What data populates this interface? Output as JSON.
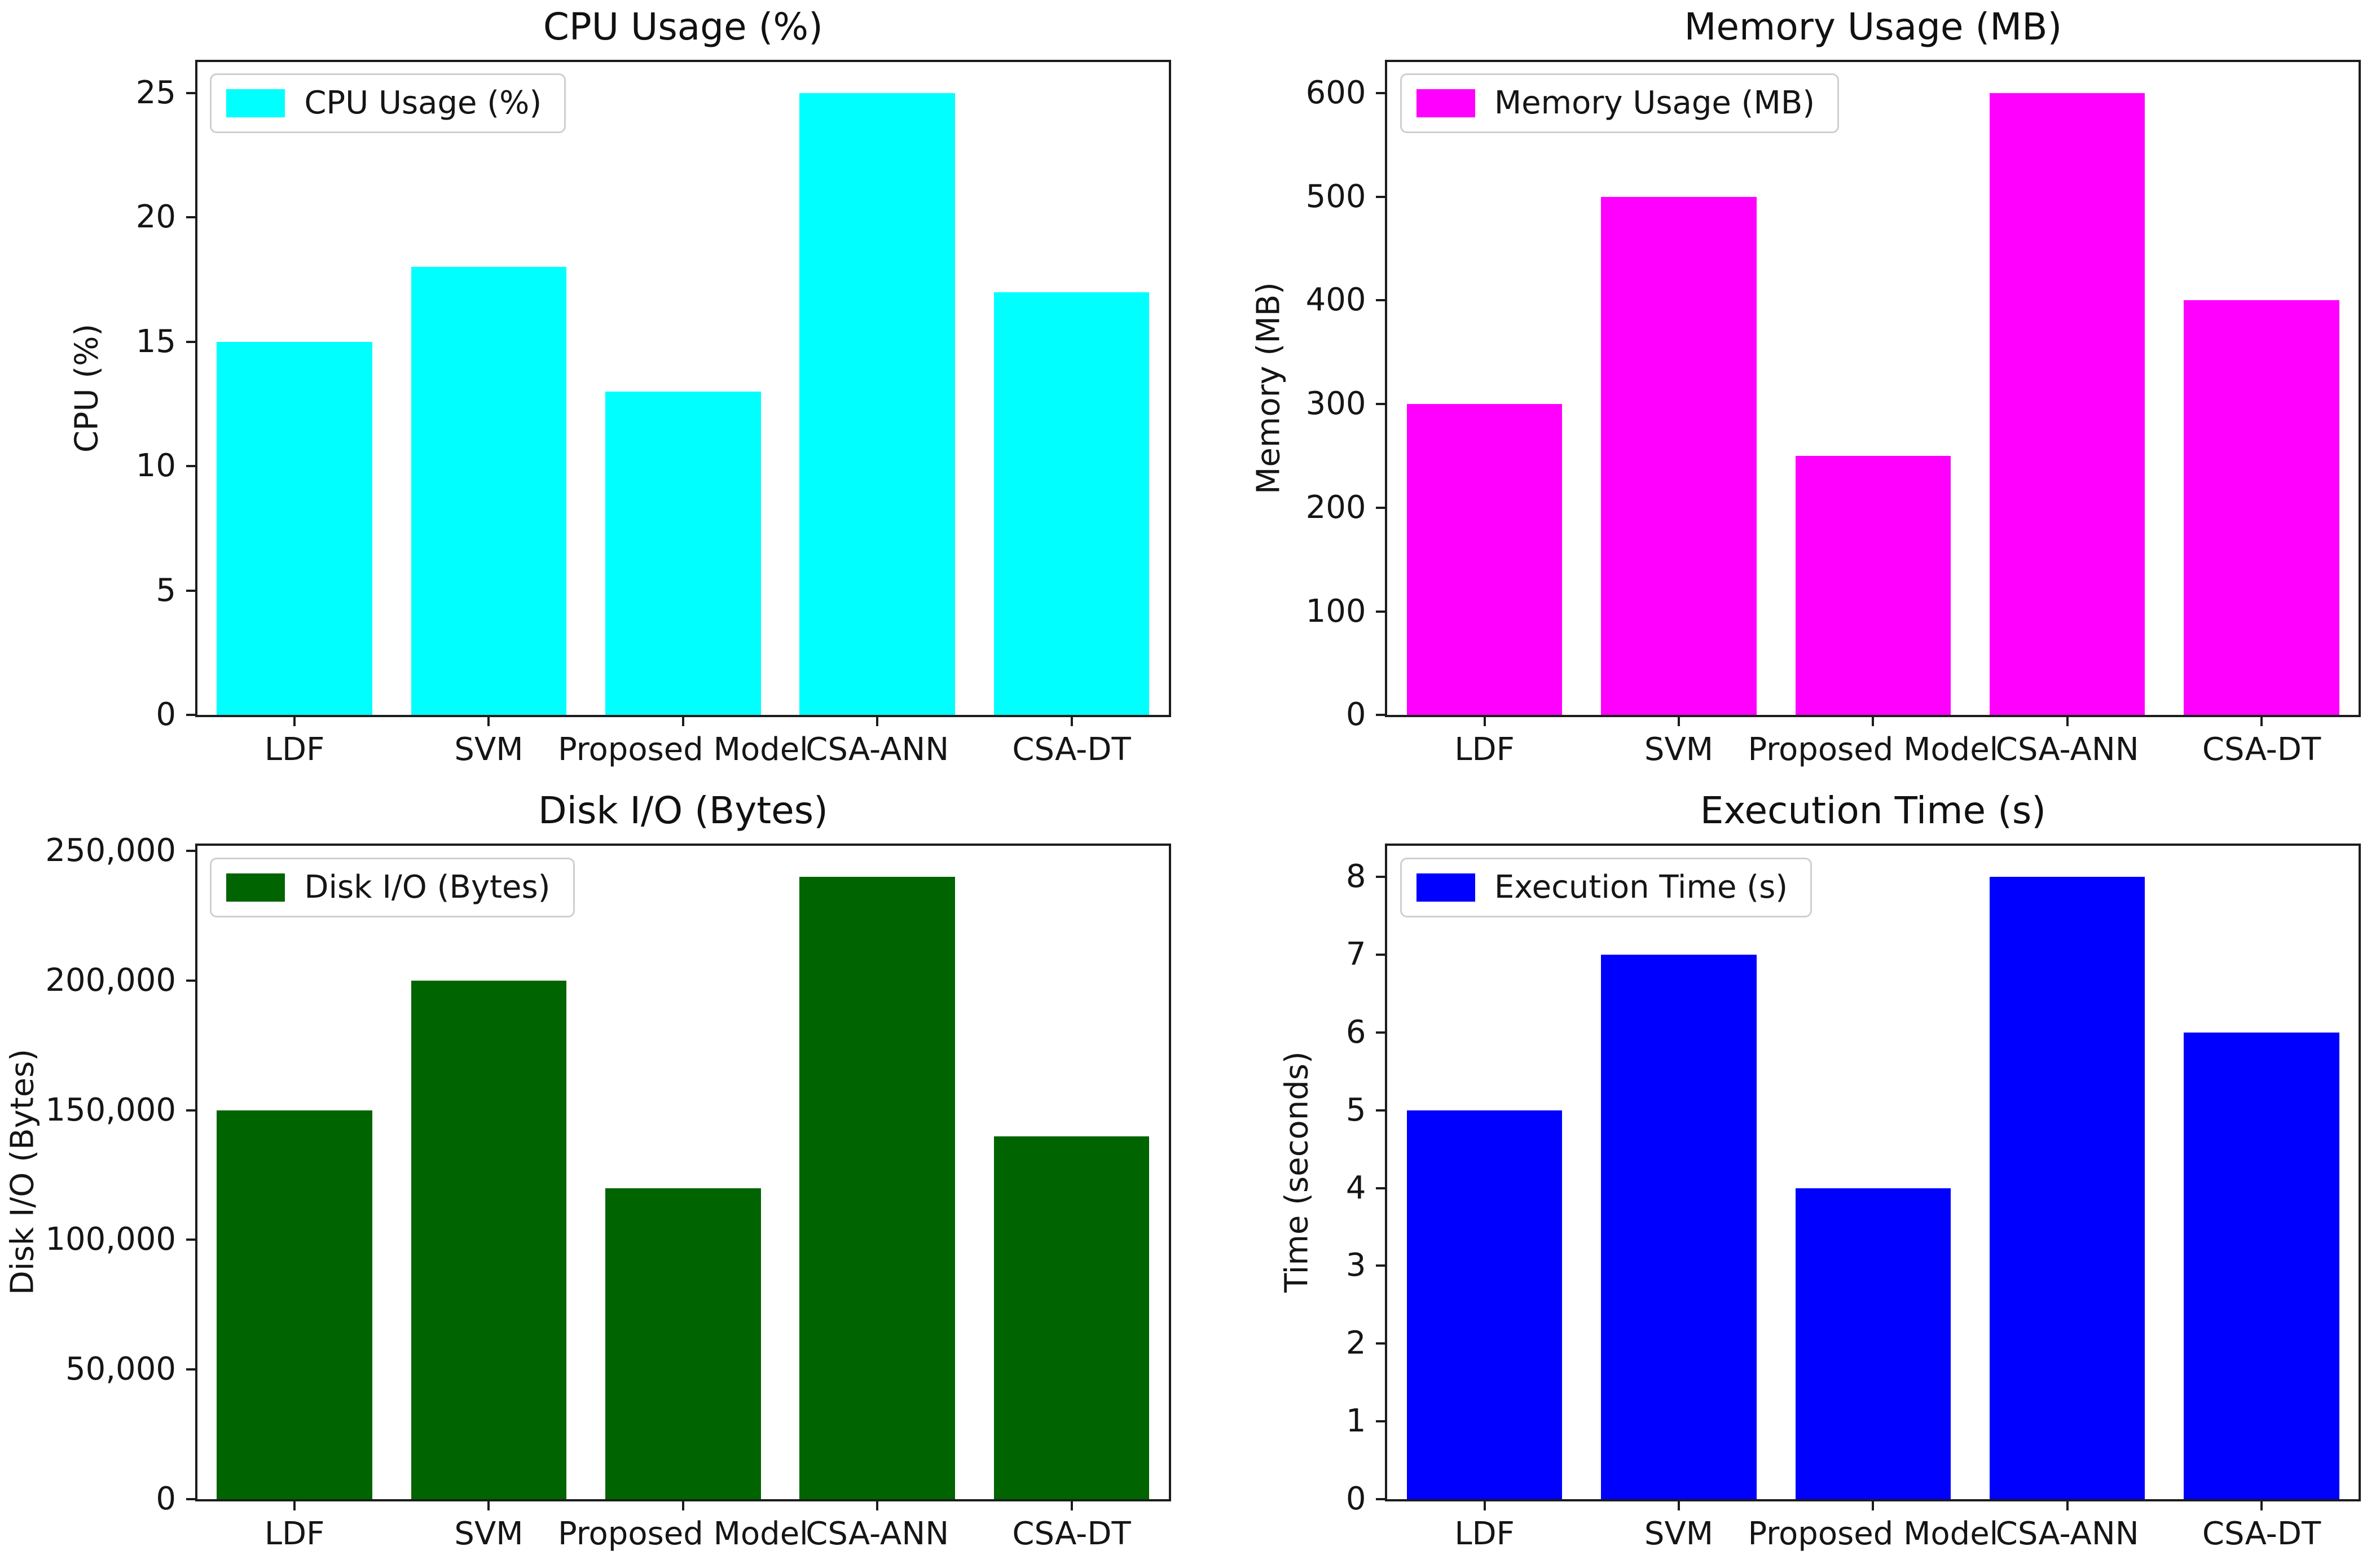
{
  "figure": {
    "layout": "2x2 grid of bar charts",
    "background": "#ffffff"
  },
  "chart_data": [
    {
      "type": "bar",
      "title": "CPU Usage (%)",
      "ylabel": "CPU (%)",
      "xlabel": "",
      "legend_label": "CPU Usage (%)",
      "legend_position": "upper left",
      "bar_color": "#00ffff",
      "categories": [
        "LDF",
        "SVM",
        "Proposed Model",
        "CSA-ANN",
        "CSA-DT"
      ],
      "values": [
        15,
        18,
        13,
        25,
        17
      ],
      "yticks": [
        0,
        5,
        10,
        15,
        20,
        25
      ],
      "yticklabels": [
        "0",
        "5",
        "10",
        "15",
        "20",
        "25"
      ],
      "ylim": [
        0,
        26.25
      ],
      "grid": false
    },
    {
      "type": "bar",
      "title": "Memory Usage (MB)",
      "ylabel": "Memory (MB)",
      "xlabel": "",
      "legend_label": "Memory Usage (MB)",
      "legend_position": "upper left",
      "bar_color": "#ff00ff",
      "categories": [
        "LDF",
        "SVM",
        "Proposed Model",
        "CSA-ANN",
        "CSA-DT"
      ],
      "values": [
        300,
        500,
        250,
        600,
        400
      ],
      "yticks": [
        0,
        100,
        200,
        300,
        400,
        500,
        600
      ],
      "yticklabels": [
        "0",
        "100",
        "200",
        "300",
        "400",
        "500",
        "600"
      ],
      "ylim": [
        0,
        630
      ],
      "grid": false
    },
    {
      "type": "bar",
      "title": "Disk I/O (Bytes)",
      "ylabel": "Disk I/O (Bytes)",
      "xlabel": "",
      "legend_label": "Disk I/O (Bytes)",
      "legend_position": "upper left",
      "bar_color": "#006400",
      "categories": [
        "LDF",
        "SVM",
        "Proposed Model",
        "CSA-ANN",
        "CSA-DT"
      ],
      "values": [
        150000,
        200000,
        120000,
        240000,
        140000
      ],
      "yticks": [
        0,
        50000,
        100000,
        150000,
        200000,
        250000
      ],
      "yticklabels": [
        "0",
        "50,000",
        "100,000",
        "150,000",
        "200,000",
        "250,000"
      ],
      "ylim": [
        0,
        252000
      ],
      "grid": false
    },
    {
      "type": "bar",
      "title": "Execution Time (s)",
      "ylabel": "Time (seconds)",
      "xlabel": "",
      "legend_label": "Execution Time (s)",
      "legend_position": "upper left",
      "bar_color": "#0000ff",
      "categories": [
        "LDF",
        "SVM",
        "Proposed Model",
        "CSA-ANN",
        "CSA-DT"
      ],
      "values": [
        5,
        7,
        4,
        8,
        6
      ],
      "yticks": [
        0,
        1,
        2,
        3,
        4,
        5,
        6,
        7,
        8
      ],
      "yticklabels": [
        "0",
        "1",
        "2",
        "3",
        "4",
        "5",
        "6",
        "7",
        "8"
      ],
      "ylim": [
        0,
        8.4
      ],
      "grid": false
    }
  ]
}
